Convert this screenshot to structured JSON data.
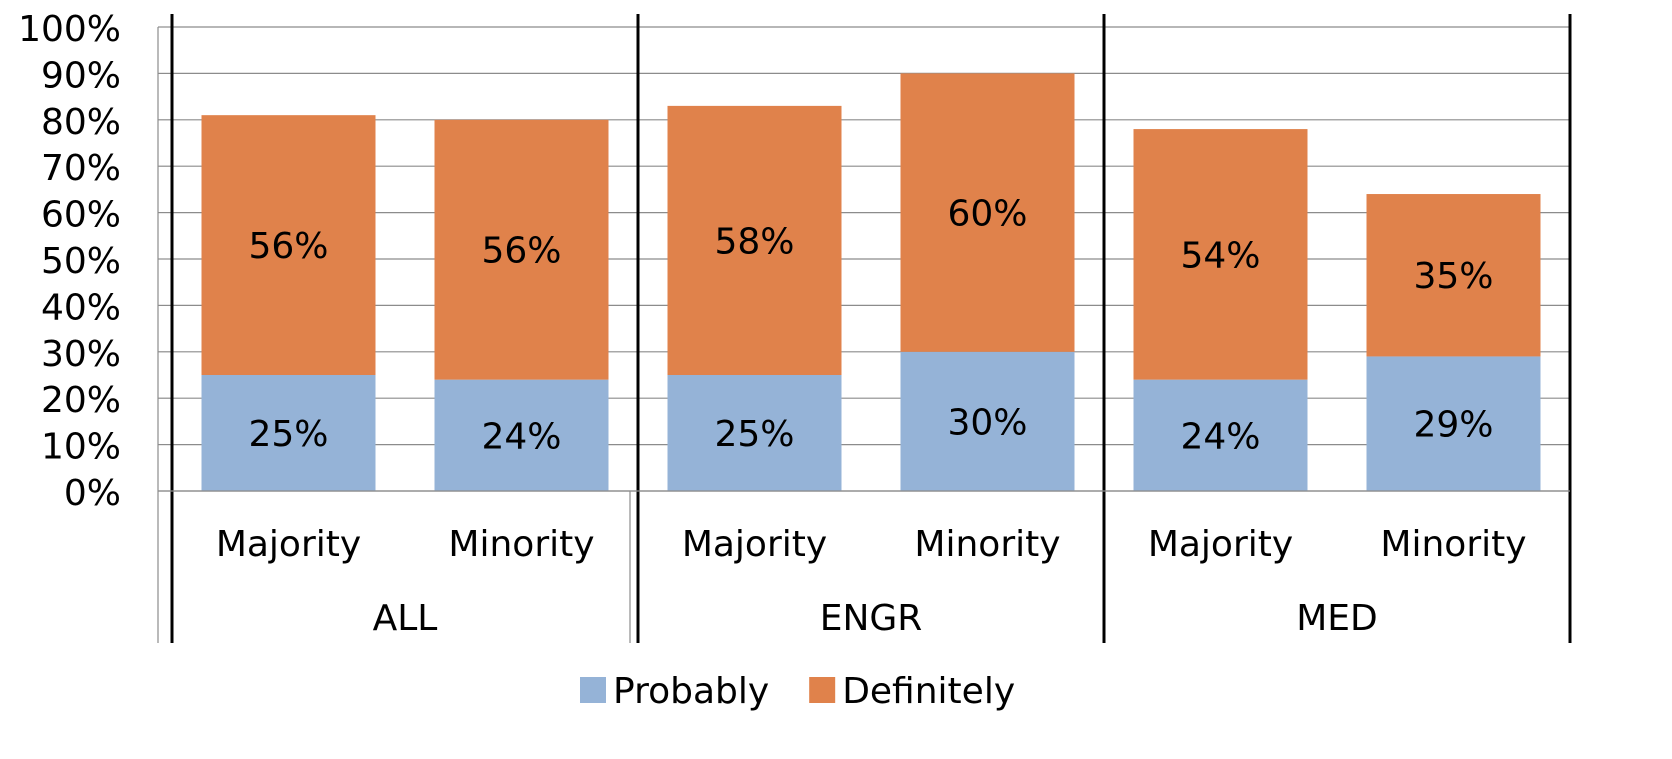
{
  "chart_data": {
    "type": "bar",
    "stacked": true,
    "groups": [
      {
        "label": "ALL",
        "categories": [
          "Majority",
          "Minority"
        ]
      },
      {
        "label": "ENGR",
        "categories": [
          "Majority",
          "Minority"
        ]
      },
      {
        "label": "MED",
        "categories": [
          "Majority",
          "Minority"
        ]
      }
    ],
    "series": [
      {
        "name": "Probably",
        "color": "#95B3D7",
        "values": [
          25,
          24,
          25,
          30,
          24,
          29
        ],
        "labels": [
          "25%",
          "24%",
          "25%",
          "30%",
          "24%",
          "29%"
        ]
      },
      {
        "name": "Definitely",
        "color": "#E0824B",
        "values": [
          56,
          56,
          58,
          60,
          54,
          35
        ],
        "labels": [
          "56%",
          "56%",
          "58%",
          "60%",
          "54%",
          "35%"
        ]
      }
    ],
    "ylim": [
      0,
      100
    ],
    "yticks": [
      "0%",
      "10%",
      "20%",
      "30%",
      "40%",
      "50%",
      "60%",
      "70%",
      "80%",
      "90%",
      "100%"
    ],
    "title": "",
    "xlabel": "",
    "ylabel": "",
    "grid": true,
    "legend": "bottom"
  }
}
